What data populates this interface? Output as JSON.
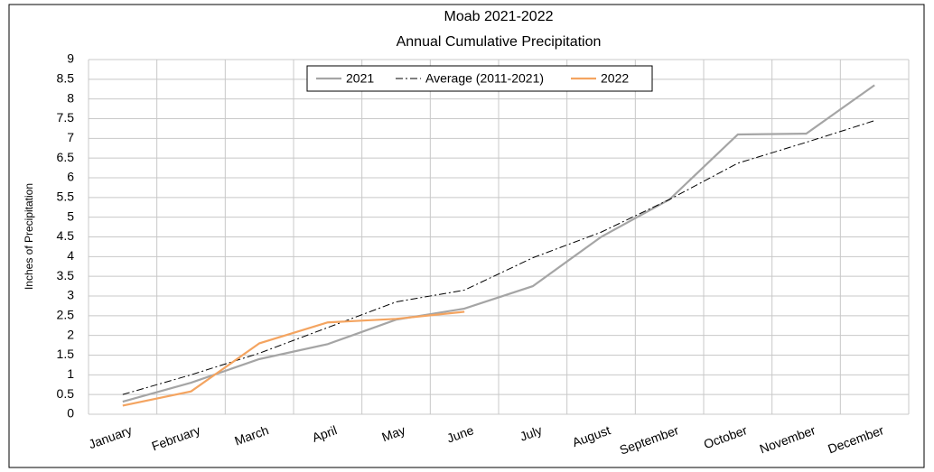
{
  "chart_data": {
    "type": "line",
    "title": "Moab 2021-2022",
    "subtitle": "Annual Cumulative Precipitation",
    "y_label": "Inches of Precipitation",
    "categories": [
      "January",
      "February",
      "March",
      "April",
      "May",
      "June",
      "July",
      "August",
      "September",
      "October",
      "November",
      "December"
    ],
    "series": [
      {
        "name": "2021",
        "color": "#a5a5a5",
        "values": [
          0.32,
          0.8,
          1.4,
          1.78,
          2.4,
          2.68,
          3.25,
          4.5,
          5.45,
          7.1,
          7.12,
          8.35
        ]
      },
      {
        "name": "Average (2011-2021)",
        "color": "#000000",
        "values": [
          0.5,
          1.0,
          1.55,
          2.2,
          2.85,
          3.15,
          3.97,
          4.62,
          5.45,
          6.37,
          6.9,
          7.45
        ]
      },
      {
        "name": "2022",
        "color": "#f4a460",
        "values": [
          0.22,
          0.58,
          1.8,
          2.33,
          2.42,
          2.6,
          null,
          null,
          null,
          null,
          null,
          null
        ]
      }
    ],
    "ylim": [
      0,
      9
    ],
    "yticks": [
      0,
      0.5,
      1,
      1.5,
      2,
      2.5,
      3,
      3.5,
      4,
      4.5,
      5,
      5.5,
      6,
      6.5,
      7,
      7.5,
      8,
      8.5,
      9
    ],
    "grid": true,
    "legend": "top"
  }
}
